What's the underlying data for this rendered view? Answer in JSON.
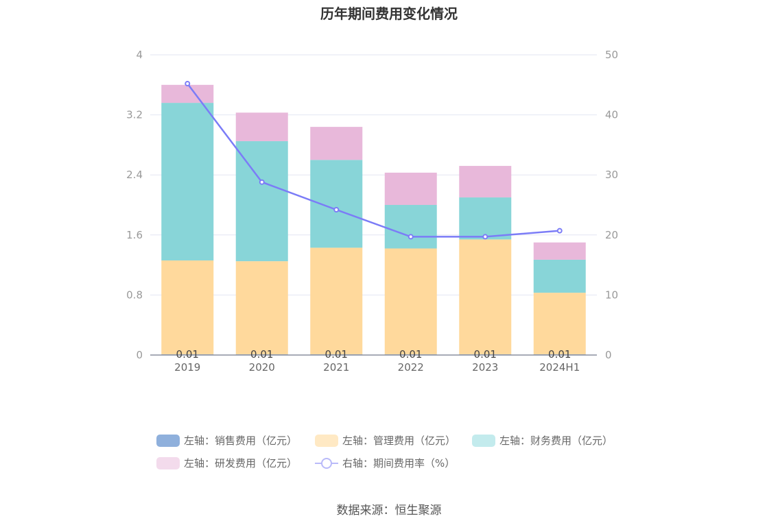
{
  "title": "历年期间费用变化情况",
  "source": "数据来源：恒生聚源",
  "colors": {
    "sales": "#8fb0dc",
    "admin": "#ffd99c",
    "finance": "#88d5d8",
    "rd": "#e8b8da",
    "rate": "#7b7cf7"
  },
  "legend": [
    {
      "key": "sales",
      "label": "左轴：销售费用（亿元）",
      "icon": "rounded-rect",
      "color": "#8fb0dc"
    },
    {
      "key": "admin",
      "label": "左轴：管理费用（亿元）",
      "icon": "rounded-rect",
      "color": "#ffe9c4"
    },
    {
      "key": "finance",
      "label": "左轴：财务费用（亿元）",
      "icon": "rounded-rect",
      "color": "#c3ebed"
    },
    {
      "key": "rd",
      "label": "左轴：研发费用（亿元）",
      "icon": "rounded-rect",
      "color": "#f3dbec"
    },
    {
      "key": "rate",
      "label": "右轴：期间费用率（%）",
      "icon": "line-circle",
      "color": "#b9baf9"
    }
  ],
  "chart_data": {
    "type": "bar",
    "stacked": true,
    "categories": [
      "2019",
      "2020",
      "2021",
      "2022",
      "2023",
      "2024H1"
    ],
    "series": [
      {
        "key": "sales",
        "name": "左轴：销售费用（亿元）",
        "axis": "left",
        "values": [
          0.01,
          0.01,
          0.01,
          0.01,
          0.01,
          0.01
        ],
        "data_labels": [
          "0.01",
          "0.01",
          "0.01",
          "0.01",
          "0.01",
          "0.01"
        ]
      },
      {
        "key": "admin",
        "name": "左轴：管理费用（亿元）",
        "axis": "left",
        "values": [
          1.25,
          1.24,
          1.42,
          1.41,
          1.53,
          0.82
        ]
      },
      {
        "key": "finance",
        "name": "左轴：财务费用（亿元）",
        "axis": "left",
        "values": [
          2.1,
          1.6,
          1.17,
          0.58,
          0.56,
          0.44
        ]
      },
      {
        "key": "rd",
        "name": "左轴：研发费用（亿元）",
        "axis": "left",
        "values": [
          0.24,
          0.38,
          0.44,
          0.43,
          0.42,
          0.23
        ]
      },
      {
        "key": "rate",
        "name": "右轴：期间费用率（%）",
        "axis": "right",
        "type": "line",
        "values": [
          45.2,
          28.8,
          24.2,
          19.7,
          19.7,
          20.7
        ]
      }
    ],
    "y_left": {
      "min": 0,
      "max": 4,
      "ticks": [
        "0",
        "0.8",
        "1.6",
        "2.4",
        "3.2",
        "4"
      ]
    },
    "y_right": {
      "min": 0,
      "max": 50,
      "ticks": [
        "0",
        "10",
        "20",
        "30",
        "40",
        "50"
      ]
    },
    "grid": true,
    "legend_position": "bottom"
  }
}
